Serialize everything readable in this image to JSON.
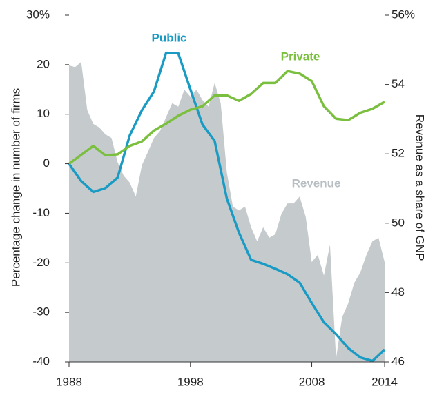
{
  "chart_data": {
    "type": "line",
    "y_label": "Percentage change in number of firms",
    "y2_label": "Revenue as a share of GNP",
    "xlim": [
      1988,
      2014
    ],
    "xticks": [
      1988,
      1998,
      2008,
      2014
    ],
    "ylim": [
      -40,
      30
    ],
    "yticks": [
      {
        "value": 30,
        "label": "30%"
      },
      20,
      10,
      0,
      -10,
      -20,
      -30,
      -40
    ],
    "y2lim": [
      46,
      56
    ],
    "y2ticks": [
      {
        "value": 56,
        "label": "56%"
      },
      54,
      52,
      50,
      48,
      46
    ],
    "x": [
      1988,
      1989,
      1990,
      1991,
      1992,
      1993,
      1994,
      1995,
      1996,
      1997,
      1998,
      1999,
      2000,
      2001,
      2002,
      2003,
      2004,
      2005,
      2006,
      2007,
      2008,
      2009,
      2010,
      2011,
      2012,
      2013,
      2014
    ],
    "series": [
      {
        "name": "Revenue",
        "color": "#c5cacd",
        "axis": "y2",
        "kind": "area",
        "x": [
          1988,
          1988.5,
          1989,
          1989.5,
          1990,
          1990.5,
          1991,
          1991.5,
          1992,
          1992.5,
          1993,
          1993.5,
          1994,
          1994.5,
          1995,
          1995.5,
          1996,
          1996.5,
          1997,
          1997.5,
          1998,
          1998.5,
          1999,
          1999.5,
          2000,
          2000.5,
          2001,
          2001.5,
          2002,
          2002.5,
          2003,
          2003.5,
          2004,
          2004.5,
          2005,
          2005.5,
          2006,
          2006.5,
          2007,
          2007.5,
          2008,
          2008.5,
          2009,
          2009.5,
          2010,
          2010.5,
          2011,
          2011.5,
          2012,
          2012.5,
          2013,
          2013.5,
          2014
        ],
        "values": [
          54.55,
          54.5,
          54.65,
          53.26,
          52.86,
          52.76,
          52.56,
          52.46,
          51.76,
          51.37,
          51.17,
          50.77,
          51.67,
          52.06,
          52.46,
          52.66,
          53.06,
          53.46,
          53.36,
          53.85,
          53.65,
          53.85,
          53.55,
          53.36,
          54.05,
          53.46,
          51.47,
          50.48,
          50.37,
          50.48,
          49.88,
          49.48,
          49.88,
          49.58,
          49.68,
          50.27,
          50.57,
          50.57,
          50.77,
          50.18,
          48.88,
          49.09,
          48.49,
          49.38,
          46.1,
          47.29,
          47.69,
          48.28,
          48.58,
          49.08,
          49.48,
          49.58,
          48.88
        ]
      },
      {
        "name": "Public",
        "color": "#1a9bc4",
        "values": [
          0,
          -3.5,
          -5.7,
          -4.9,
          -2.8,
          5.7,
          10.8,
          14.6,
          22.4,
          22.3,
          15,
          7.9,
          4.6,
          -7,
          -13.9,
          -19.4,
          -20.2,
          -21.2,
          -22.3,
          -24,
          -28.1,
          -32,
          -34.4,
          -37.2,
          -39.1,
          -39.8,
          -37.5
        ]
      },
      {
        "name": "Private",
        "color": "#7bbf3f",
        "values": [
          0,
          1.8,
          3.6,
          1.7,
          1.9,
          3.6,
          4.5,
          6.7,
          8.1,
          9.7,
          10.9,
          11.6,
          13.8,
          13.8,
          12.7,
          14.1,
          16.3,
          16.3,
          18.7,
          18.2,
          16.7,
          11.6,
          9.1,
          8.8,
          10.3,
          11.1,
          12.5
        ]
      }
    ]
  }
}
